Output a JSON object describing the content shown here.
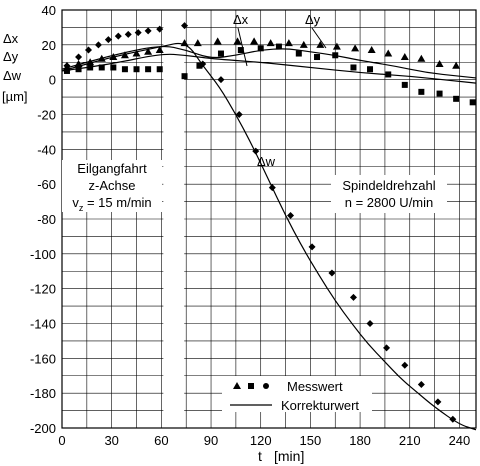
{
  "chart_data": {
    "type": "scatter",
    "title": "",
    "xlabel": "t",
    "xlabel_unit": "[min]",
    "ylabel_lines": [
      "Δx",
      "Δy",
      "Δw",
      "[µm]"
    ],
    "xlim": [
      0,
      240
    ],
    "ylim": [
      -200,
      40
    ],
    "x_ticks": [
      0,
      30,
      60,
      90,
      120,
      150,
      180,
      210,
      240
    ],
    "y_ticks": [
      40,
      20,
      0,
      -20,
      -40,
      -60,
      -80,
      -100,
      -120,
      -140,
      -160,
      -180,
      -200
    ],
    "grid": true,
    "gap_band": [
      60,
      75
    ],
    "annotations": {
      "left_box": [
        "Eilgangfahrt",
        "z-Achse",
        "v",
        "z",
        " = 15 m/min"
      ],
      "right_box": [
        "Spindeldrehzahl",
        "n = 2800 U/min"
      ],
      "label_dx": "Δx",
      "label_dy": "Δy",
      "label_dw": "Δw"
    },
    "legend": {
      "placement": "bottom-center",
      "measured": "Messwert",
      "corrected": "Korrekturwert"
    },
    "series": [
      {
        "marker": "triangle",
        "kind": "points",
        "points": [
          [
            3,
            7
          ],
          [
            10,
            9
          ],
          [
            17,
            10
          ],
          [
            24,
            12
          ],
          [
            31,
            13
          ],
          [
            38,
            14
          ],
          [
            45,
            15
          ],
          [
            52,
            16
          ],
          [
            59,
            17
          ],
          [
            74,
            21
          ],
          [
            82,
            21
          ],
          [
            94,
            22
          ],
          [
            106,
            22
          ],
          [
            116,
            22
          ],
          [
            126,
            21
          ],
          [
            137,
            21
          ],
          [
            146,
            20
          ],
          [
            156,
            20
          ],
          [
            166,
            19
          ],
          [
            177,
            18
          ],
          [
            187,
            17
          ],
          [
            197,
            15
          ],
          [
            207,
            13
          ],
          [
            217,
            12
          ],
          [
            228,
            9
          ],
          [
            238,
            8
          ]
        ]
      },
      {
        "marker": "square",
        "kind": "points",
        "points": [
          [
            3,
            5
          ],
          [
            10,
            6
          ],
          [
            17,
            7
          ],
          [
            24,
            7
          ],
          [
            31,
            7
          ],
          [
            38,
            6
          ],
          [
            45,
            6
          ],
          [
            52,
            6
          ],
          [
            59,
            6
          ],
          [
            74,
            2
          ],
          [
            83,
            8
          ],
          [
            96,
            15
          ],
          [
            108,
            17
          ],
          [
            120,
            18
          ],
          [
            131,
            19
          ],
          [
            143,
            15
          ],
          [
            154,
            13
          ],
          [
            165,
            14
          ],
          [
            176,
            7
          ],
          [
            186,
            6
          ],
          [
            197,
            3
          ],
          [
            207,
            -3
          ],
          [
            217,
            -7
          ],
          [
            228,
            -8
          ],
          [
            238,
            -11
          ],
          [
            248,
            -13
          ]
        ]
      },
      {
        "marker": "diamond",
        "kind": "points",
        "points": [
          [
            3,
            8
          ],
          [
            10,
            13
          ],
          [
            16,
            17
          ],
          [
            22,
            20
          ],
          [
            28,
            23
          ],
          [
            34,
            25
          ],
          [
            40,
            26
          ],
          [
            46,
            27
          ],
          [
            52,
            28
          ],
          [
            59,
            29
          ],
          [
            74,
            31
          ],
          [
            85,
            9
          ],
          [
            96,
            0
          ],
          [
            107,
            -20
          ],
          [
            117,
            -41
          ],
          [
            127,
            -62
          ],
          [
            138,
            -78
          ],
          [
            151,
            -96
          ],
          [
            163,
            -111
          ],
          [
            176,
            -125
          ],
          [
            186,
            -140
          ],
          [
            196,
            -154
          ],
          [
            207,
            -164
          ],
          [
            217,
            -175
          ],
          [
            227,
            -185
          ],
          [
            236,
            -195
          ]
        ]
      },
      {
        "kind": "curve",
        "label": "Δx",
        "points": [
          [
            0,
            5
          ],
          [
            30,
            9
          ],
          [
            60,
            15
          ],
          [
            75,
            14
          ],
          [
            90,
            12
          ],
          [
            120,
            10
          ],
          [
            150,
            7
          ],
          [
            180,
            4
          ],
          [
            210,
            2
          ],
          [
            240,
            -1
          ],
          [
            250,
            -2
          ]
        ]
      },
      {
        "kind": "curve",
        "label": "Δy",
        "points": [
          [
            0,
            6
          ],
          [
            30,
            14
          ],
          [
            60,
            20
          ],
          [
            75,
            17
          ],
          [
            90,
            12
          ],
          [
            105,
            14
          ],
          [
            120,
            17
          ],
          [
            135,
            18
          ],
          [
            150,
            16
          ],
          [
            165,
            14
          ],
          [
            180,
            11
          ],
          [
            200,
            8
          ],
          [
            220,
            4
          ],
          [
            240,
            2
          ],
          [
            250,
            1
          ]
        ]
      },
      {
        "kind": "curve",
        "label": "Δw",
        "points": [
          [
            0,
            5
          ],
          [
            30,
            13
          ],
          [
            60,
            19
          ],
          [
            75,
            22
          ],
          [
            85,
            8
          ],
          [
            95,
            -4
          ],
          [
            105,
            -20
          ],
          [
            115,
            -38
          ],
          [
            125,
            -58
          ],
          [
            135,
            -78
          ],
          [
            145,
            -96
          ],
          [
            155,
            -112
          ],
          [
            165,
            -127
          ],
          [
            175,
            -140
          ],
          [
            185,
            -152
          ],
          [
            195,
            -162
          ],
          [
            205,
            -172
          ],
          [
            215,
            -180
          ],
          [
            225,
            -188
          ],
          [
            240,
            -198
          ],
          [
            250,
            -201
          ]
        ]
      }
    ]
  }
}
